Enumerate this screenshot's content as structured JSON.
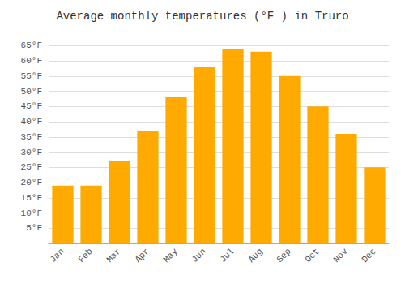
{
  "chart_data": {
    "type": "bar",
    "title": "Average monthly temperatures (°F ) in Truro",
    "categories": [
      "Jan",
      "Feb",
      "Mar",
      "Apr",
      "May",
      "Jun",
      "Jul",
      "Aug",
      "Sep",
      "Oct",
      "Nov",
      "Dec"
    ],
    "values": [
      19,
      19,
      27,
      37,
      48,
      58,
      64,
      63,
      55,
      45,
      36,
      25
    ],
    "color": "#FFAA00",
    "ylim": [
      0,
      68
    ],
    "yticks": [
      {
        "value": 5,
        "label": "5°F"
      },
      {
        "value": 10,
        "label": "10°F"
      },
      {
        "value": 15,
        "label": "15°F"
      },
      {
        "value": 20,
        "label": "20°F"
      },
      {
        "value": 25,
        "label": "25°F"
      },
      {
        "value": 30,
        "label": "30°F"
      },
      {
        "value": 35,
        "label": "35°F"
      },
      {
        "value": 40,
        "label": "40°F"
      },
      {
        "value": 45,
        "label": "45°F"
      },
      {
        "value": 50,
        "label": "50°F"
      },
      {
        "value": 55,
        "label": "55°F"
      },
      {
        "value": 60,
        "label": "60°F"
      },
      {
        "value": 65,
        "label": "65°F"
      }
    ],
    "grid": true
  }
}
